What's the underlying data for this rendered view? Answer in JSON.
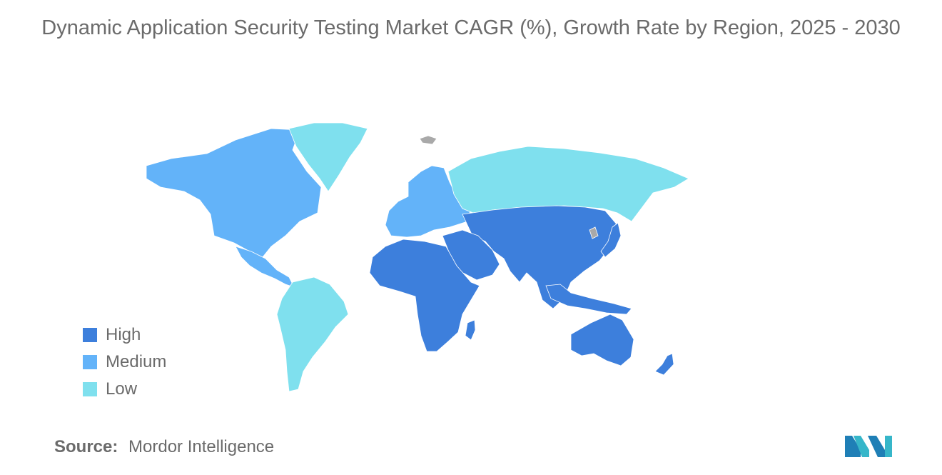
{
  "title": "Dynamic Application Security Testing Market CAGR (%), Growth Rate by Region, 2025 - 2030",
  "colors": {
    "high": "#3d7fdc",
    "medium": "#63b3f9",
    "low": "#7fe0ee",
    "no_data": "#a9a9a9"
  },
  "legend": [
    {
      "label": "High",
      "color": "#3d7fdc"
    },
    {
      "label": "Medium",
      "color": "#63b3f9"
    },
    {
      "label": "Low",
      "color": "#7fe0ee"
    }
  ],
  "regions": [
    {
      "name": "North America",
      "level": "medium"
    },
    {
      "name": "Greenland",
      "level": "low"
    },
    {
      "name": "Central America & Caribbean",
      "level": "medium"
    },
    {
      "name": "South America",
      "level": "low"
    },
    {
      "name": "Europe",
      "level": "medium"
    },
    {
      "name": "Russia",
      "level": "low"
    },
    {
      "name": "Asia",
      "level": "high"
    },
    {
      "name": "Middle East",
      "level": "high"
    },
    {
      "name": "Africa",
      "level": "high"
    },
    {
      "name": "Australia & Oceania",
      "level": "high"
    }
  ],
  "source": {
    "key": "Source:",
    "value": "Mordor Intelligence"
  },
  "logo_icon": "mordor-intelligence-logo-icon"
}
